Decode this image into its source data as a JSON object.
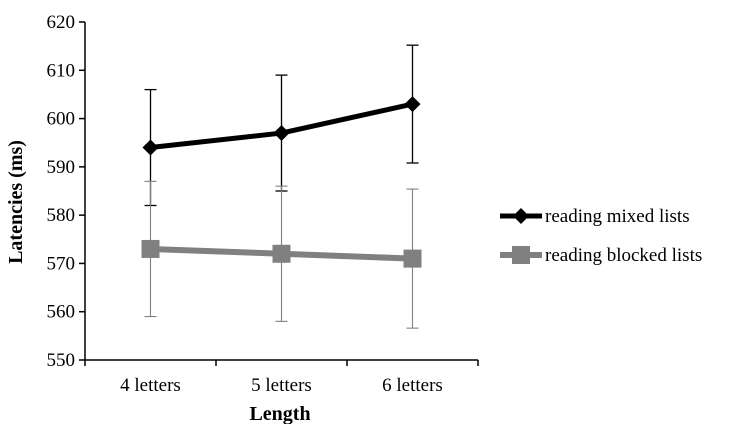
{
  "chart_data": {
    "type": "line",
    "title": "",
    "xlabel": "Length",
    "ylabel": "Latencies (ms)",
    "categories": [
      "4 letters",
      "5 letters",
      "6 letters"
    ],
    "ylim": [
      550,
      620
    ],
    "yticks": [
      550,
      560,
      570,
      580,
      590,
      600,
      610,
      620
    ],
    "grid": false,
    "legend_position": "right",
    "series": [
      {
        "name": "reading mixed lists",
        "values": [
          594,
          597,
          603
        ],
        "error": [
          12,
          12,
          12.2
        ],
        "color": "#000000",
        "marker": "diamond"
      },
      {
        "name": "reading blocked lists",
        "values": [
          573,
          572,
          571
        ],
        "error": [
          14,
          14,
          14.4
        ],
        "color": "#808080",
        "marker": "square"
      }
    ]
  }
}
